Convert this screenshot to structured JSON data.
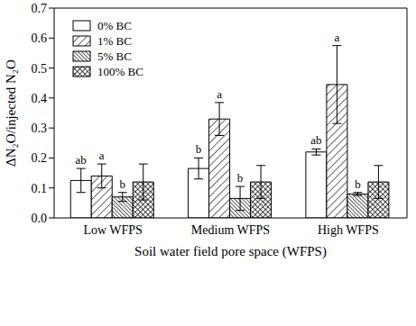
{
  "chart_data": {
    "type": "bar",
    "x_label": "Soil water field pore space (WFPS)",
    "y_label": "ΔN₂O/injected N₂O",
    "categories": [
      "Low WFPS",
      "Medium WFPS",
      "High WFPS"
    ],
    "series": [
      {
        "name": "0% BC",
        "color": "#ffffff",
        "values": [
          0.125,
          0.165,
          0.22
        ],
        "errors": [
          0.04,
          0.035,
          0.01
        ],
        "letters": [
          "ab",
          "b",
          "ab"
        ]
      },
      {
        "name": "1% BC",
        "color": "#ffffff",
        "values": [
          0.14,
          0.33,
          0.445
        ],
        "errors": [
          0.04,
          0.055,
          0.13
        ],
        "letters": [
          "a",
          "a",
          "a"
        ]
      },
      {
        "name": "5% BC",
        "color": "#ffffff",
        "values": [
          0.07,
          0.065,
          0.08
        ],
        "errors": [
          0.015,
          0.04,
          0.005
        ],
        "letters": [
          "b",
          "b",
          "b"
        ]
      },
      {
        "name": "100% BC",
        "color": "#ffffff",
        "values": [
          0.12,
          0.12,
          0.12
        ],
        "errors": [
          0.06,
          0.055,
          0.055
        ],
        "letters": [
          null,
          null,
          null
        ]
      }
    ],
    "ylim": [
      0,
      0.7
    ],
    "yticks": [
      {
        "value": 0,
        "label": "0.0"
      },
      0.1,
      0.2,
      0.3,
      0.4,
      0.5,
      0.6,
      0.7
    ],
    "grid": false,
    "legend": "upper left"
  }
}
